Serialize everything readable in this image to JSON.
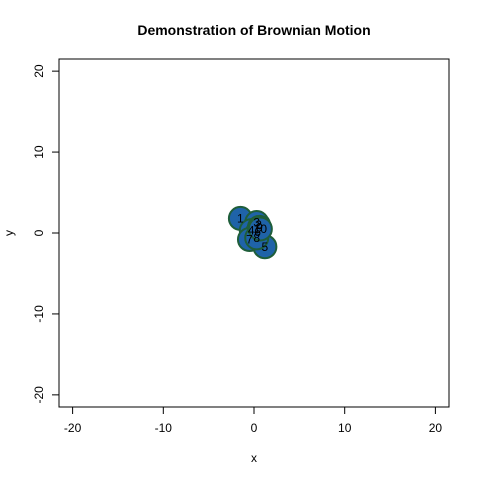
{
  "chart_data": {
    "type": "scatter",
    "title": "Demonstration of Brownian Motion",
    "xlabel": "x",
    "ylabel": "y",
    "xlim": [
      -21.5,
      21.5
    ],
    "ylim": [
      -21.5,
      21.5
    ],
    "xticks": [
      -20,
      -10,
      0,
      10,
      20
    ],
    "yticks": [
      -20,
      -10,
      0,
      10,
      20
    ],
    "xtick_labels": [
      "-20",
      "-10",
      "0",
      "10",
      "20"
    ],
    "ytick_labels": [
      "-20",
      "-10",
      "0",
      "10",
      "20"
    ],
    "grid": false,
    "legend": "none",
    "marker_fill": "#1f63a8",
    "marker_edge": "#1f5e3a",
    "points": [
      {
        "label": "1",
        "x": -1.5,
        "y": 1.8
      },
      {
        "label": "2",
        "x": 0.5,
        "y": 1.0
      },
      {
        "label": "3",
        "x": 0.3,
        "y": 1.3
      },
      {
        "label": "4",
        "x": -0.3,
        "y": 0.3
      },
      {
        "label": "5",
        "x": 1.2,
        "y": -1.7
      },
      {
        "label": "6",
        "x": 0.4,
        "y": 0.1
      },
      {
        "label": "7",
        "x": -0.5,
        "y": -0.8
      },
      {
        "label": "8",
        "x": 0.3,
        "y": -0.6
      },
      {
        "label": "9",
        "x": 0.6,
        "y": 0.7
      },
      {
        "label": "10",
        "x": 0.7,
        "y": 0.5
      }
    ]
  }
}
